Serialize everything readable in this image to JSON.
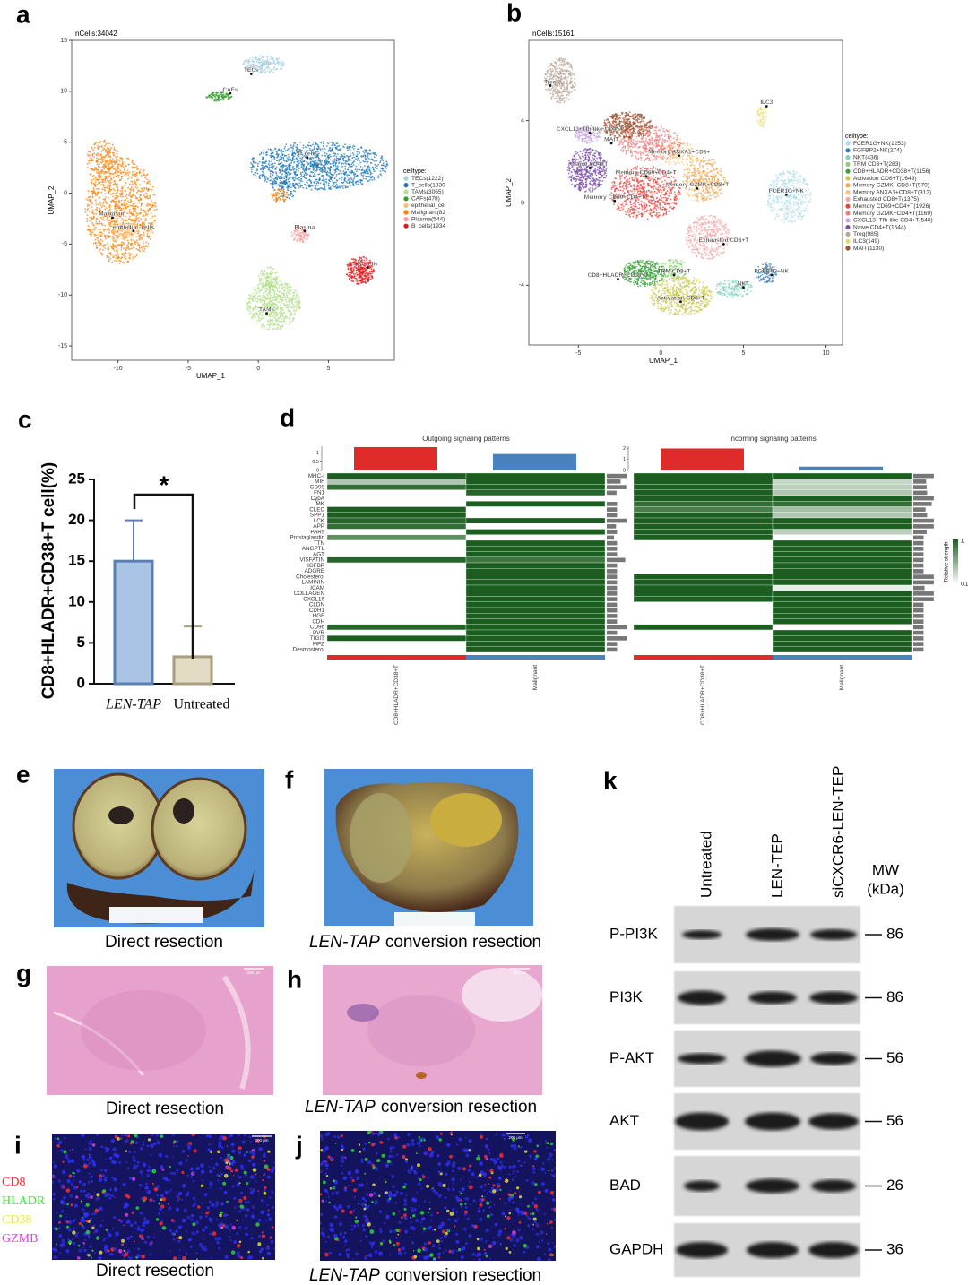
{
  "panels": {
    "a": {
      "letter": "a",
      "n_cells": "nCells:34042",
      "x_label": "UMAP_1",
      "y_label": "UMAP_2",
      "xlim": [
        -13.3,
        9.7
      ],
      "ylim": [
        -16.4,
        15
      ],
      "xticks": [
        -10,
        -5,
        0,
        5
      ],
      "yticks": [
        15,
        10,
        5,
        0,
        -5,
        -10,
        -15
      ],
      "legend_title": "celltype:",
      "legend": [
        {
          "name": "TECs(1222)",
          "color": "#a6cee3"
        },
        {
          "name": "T_cells(1830",
          "color": "#1f78b4"
        },
        {
          "name": "TAMs(3065)",
          "color": "#b2df8a"
        },
        {
          "name": "CAFs(478)",
          "color": "#33a02c"
        },
        {
          "name": "epithelial_cel",
          "color": "#fdbf6f"
        },
        {
          "name": "Malignant(82",
          "color": "#ff7f00"
        },
        {
          "name": "Plasma(544)",
          "color": "#fb9a99"
        },
        {
          "name": "B_cells(1934",
          "color": "#e31a1c"
        }
      ],
      "clusters": [
        {
          "label": "TECs",
          "x": -0.5,
          "y": 11.7
        },
        {
          "label": "CAFs",
          "x": -2.0,
          "y": 9.8
        },
        {
          "label": "T_cells",
          "x": 3.5,
          "y": 3.5
        },
        {
          "label": "Malignant",
          "x": -10.4,
          "y": -2.4
        },
        {
          "label": "epithelial_cells",
          "x": -8.9,
          "y": -3.7
        },
        {
          "label": "Plasma",
          "x": 3.3,
          "y": -3.7
        },
        {
          "label": "B_cells",
          "x": 7.8,
          "y": -7.3
        },
        {
          "label": "TAMs",
          "x": 0.6,
          "y": -11.8
        }
      ]
    },
    "b": {
      "letter": "b",
      "n_cells": "nCells:15161",
      "x_label": "UMAP_1",
      "y_label": "UMAP_2",
      "xlim": [
        -8.0,
        11.0
      ],
      "ylim": [
        -6.9,
        7.9
      ],
      "xticks": [
        -5,
        0,
        5,
        10
      ],
      "yticks": [
        4,
        0,
        -4
      ],
      "legend_title": "celltype:",
      "legend": [
        {
          "name": "FCER1G+NK(1253)",
          "color": "#a9dbe9"
        },
        {
          "name": "FGFBP2+NK(274)",
          "color": "#3a7fb8"
        },
        {
          "name": "NKT(436)",
          "color": "#86d0c0"
        },
        {
          "name": "TRM CD8+T(283)",
          "color": "#8fd07a"
        },
        {
          "name": "CD8+HLADR+CD38+T(1156)",
          "color": "#39a139"
        },
        {
          "name": "Activation CD8+T(1649)",
          "color": "#c9c84c"
        },
        {
          "name": "Memory GZMK+CD8+T(979)",
          "color": "#f3a64a"
        },
        {
          "name": "Memory ANXA1+CD8+T(313)",
          "color": "#f6c27a"
        },
        {
          "name": "Exhausted CD8+T(1375)",
          "color": "#f2a7a5"
        },
        {
          "name": "Memory CD69+CD4+T(1926)",
          "color": "#e8433f"
        },
        {
          "name": "Memory GZMK+CD4+T(1169)",
          "color": "#ef7f7f"
        },
        {
          "name": "CXCL13+Tfh-like CD4+T(540)",
          "color": "#c9a3dc"
        },
        {
          "name": "Naive CD4+T(1544)",
          "color": "#7b4fa8"
        },
        {
          "name": "Treg(985)",
          "color": "#b8a89a"
        },
        {
          "name": "ILC3(149)",
          "color": "#e5dc62"
        },
        {
          "name": "MAIT(1130)",
          "color": "#a0522d"
        }
      ],
      "clusters": [
        {
          "label": "Treg",
          "x": -6.7,
          "y": 5.7
        },
        {
          "label": "CXCL13+Tfh-like CD4+T",
          "x": -4.3,
          "y": 3.4
        },
        {
          "label": "MAIT",
          "x": -3.0,
          "y": 2.9
        },
        {
          "label": "Naive CD4+T",
          "x": -4.3,
          "y": 1.7
        },
        {
          "label": "Memory ANXA1+CD8+",
          "x": 1.1,
          "y": 2.3
        },
        {
          "label": "Memory CD69+CD4+T",
          "x": -0.9,
          "y": 1.3
        },
        {
          "label": "Memory GZMK+CD8+T",
          "x": 2.2,
          "y": 0.7
        },
        {
          "label": "Memory CD69+CD4+T",
          "x": -2.8,
          "y": 0.1
        },
        {
          "label": "ILC3",
          "x": 6.4,
          "y": 4.7
        },
        {
          "label": "FCER1G+NK",
          "x": 7.6,
          "y": 0.4
        },
        {
          "label": "Exhausted CD8+T",
          "x": 3.8,
          "y": -2.0
        },
        {
          "label": "FGFBP2+NK",
          "x": 6.7,
          "y": -3.5
        },
        {
          "label": "NKT",
          "x": 5.0,
          "y": -4.1
        },
        {
          "label": "CD8+HLADR+CD38+T",
          "x": -2.6,
          "y": -3.7
        },
        {
          "label": "TRM CD8+T",
          "x": 0.8,
          "y": -3.5
        },
        {
          "label": "Activation CD8+T",
          "x": 1.2,
          "y": -4.8
        }
      ]
    },
    "c": {
      "letter": "c",
      "type": "bar",
      "y_label": "CD8+HLADR+CD38+T cell(%)",
      "categories": [
        "LEN-TAP",
        "Untreated"
      ],
      "values": [
        15,
        3.3
      ],
      "errors": [
        5,
        3.7
      ],
      "colors": [
        "#a9c4e4",
        "#e3dcc5"
      ],
      "edge_colors": [
        "#5a7fb8",
        "#a89e7e"
      ],
      "ylim": [
        0,
        25
      ],
      "yticks": [
        0,
        5,
        10,
        15,
        20,
        25
      ],
      "significance": "*"
    },
    "d": {
      "letter": "d",
      "legend_title": "Relative strength",
      "legend_ticks": [
        1,
        0.1
      ],
      "rows": [
        "MHC-I",
        "MIF",
        "CD99",
        "FN1",
        "CypA",
        "MK",
        "CLEC",
        "SPP1",
        "LCK",
        "APP",
        "PARs",
        "Prostaglandin",
        "TTN",
        "ANGPTL",
        "AGT",
        "VISFATIN",
        "IGFBP",
        "ADGRE",
        "Cholesterol",
        "LAMININ",
        "ICAM",
        "COLLAGEN",
        "CXCL16",
        "CLDN",
        "CDH1",
        "HGF",
        "CDH",
        "CD96",
        "PVR",
        "TIGIT",
        "MPZ",
        "Desmosterol"
      ],
      "column_labels": [
        "CD8+HLADR+CD38+T",
        "Malignant"
      ],
      "column_colors": [
        "#e02b2b",
        "#4a82c0"
      ],
      "heatmaps": [
        {
          "title": "Outgoing signaling patterns",
          "column_totals": [
            1.35,
            0.95
          ],
          "total_ylim": [
            0,
            1.4
          ],
          "total_ticks": [
            0,
            0.5,
            1
          ],
          "cells": [
            [
              1,
              0.35,
              0.9,
              0,
              0,
              0,
              1,
              1,
              0.95,
              0.9,
              0,
              0.7,
              0,
              0,
              0,
              0.95,
              0,
              0,
              0,
              0,
              0,
              0,
              0,
              0,
              0,
              0,
              0,
              0.95,
              0,
              1,
              0,
              0
            ],
            [
              1,
              1,
              1,
              0.95,
              0,
              1,
              0,
              0,
              1,
              0,
              1,
              0,
              1,
              1,
              1,
              0.85,
              1,
              1,
              1,
              1,
              1,
              1,
              1,
              1,
              1,
              1,
              1,
              1,
              1,
              1,
              1,
              1
            ]
          ],
          "row_totals": [
            2,
            1.35,
            1.9,
            0.95,
            0,
            1,
            1,
            1,
            1.95,
            0.9,
            1,
            0.7,
            1,
            1,
            1,
            1.8,
            1,
            1,
            1,
            1,
            1,
            1,
            1,
            1,
            1,
            1,
            1,
            1.95,
            1,
            2,
            1,
            1
          ],
          "row_xlim": [
            0,
            2.1
          ]
        },
        {
          "title": "Incoming signaling patterns",
          "column_totals": [
            2.0,
            0.35
          ],
          "total_ylim": [
            0,
            2.2
          ],
          "total_ticks": [
            0,
            1,
            2
          ],
          "cells": [
            [
              1,
              1,
              1,
              1,
              1,
              0.9,
              0.8,
              1,
              1,
              1,
              1,
              1,
              0,
              0,
              0,
              0,
              0,
              0,
              1,
              1,
              1,
              1,
              1,
              0,
              0,
              0,
              0,
              1,
              0,
              0,
              0,
              0
            ],
            [
              1,
              0.25,
              0.3,
              0.35,
              1,
              0.9,
              0.4,
              0.35,
              1,
              1,
              0.3,
              0,
              1,
              1,
              1,
              1,
              1,
              1,
              1,
              1,
              0.1,
              1,
              1,
              1,
              1,
              1,
              1,
              0,
              1,
              1,
              1,
              1
            ]
          ],
          "row_totals": [
            2,
            1.25,
            1.3,
            1.35,
            2,
            1.8,
            1.2,
            1.35,
            2,
            2,
            1.3,
            1,
            1,
            1,
            1,
            1,
            1,
            1,
            2,
            2,
            1.1,
            2,
            2,
            1,
            1,
            1,
            1,
            1,
            1,
            1,
            1,
            1
          ],
          "row_xlim": [
            0,
            2.1
          ]
        }
      ]
    },
    "e": {
      "letter": "e",
      "caption": "Direct resection"
    },
    "f": {
      "letter": "f",
      "caption_italic": "LEN-TAP",
      "caption_rest": "conversion resection"
    },
    "g": {
      "letter": "g",
      "caption": "Direct resection",
      "scale_bar": "200 μm"
    },
    "h": {
      "letter": "h",
      "caption_italic": "LEN-TAP",
      "caption_rest": "conversion resection",
      "scale_bar": "200 μm"
    },
    "i": {
      "letter": "i",
      "caption": "Direct resection",
      "scale_bar": "200 μm",
      "markers": [
        {
          "name": "CD8",
          "color": "#ff2a2a"
        },
        {
          "name": "HLADR",
          "color": "#33ee33"
        },
        {
          "name": "CD38",
          "color": "#e8e83a"
        },
        {
          "name": "GZMB",
          "color": "#e040e0"
        }
      ]
    },
    "j": {
      "letter": "j",
      "caption_italic": "LEN-TAP",
      "caption_rest": "conversion resection",
      "scale_bar": "200 μm"
    },
    "k": {
      "letter": "k",
      "lanes": [
        "Untreated",
        "LEN-TEP",
        "siCXCR6-LEN-TEP"
      ],
      "mw_title": "MW",
      "mw_unit": "(kDa)",
      "blots": [
        {
          "protein": "P-PI3K",
          "mw": 86
        },
        {
          "protein": "PI3K",
          "mw": 86
        },
        {
          "protein": "P-AKT",
          "mw": 56
        },
        {
          "protein": "AKT",
          "mw": 56
        },
        {
          "protein": "BAD",
          "mw": 26
        },
        {
          "protein": "GAPDH",
          "mw": 36
        }
      ]
    }
  }
}
